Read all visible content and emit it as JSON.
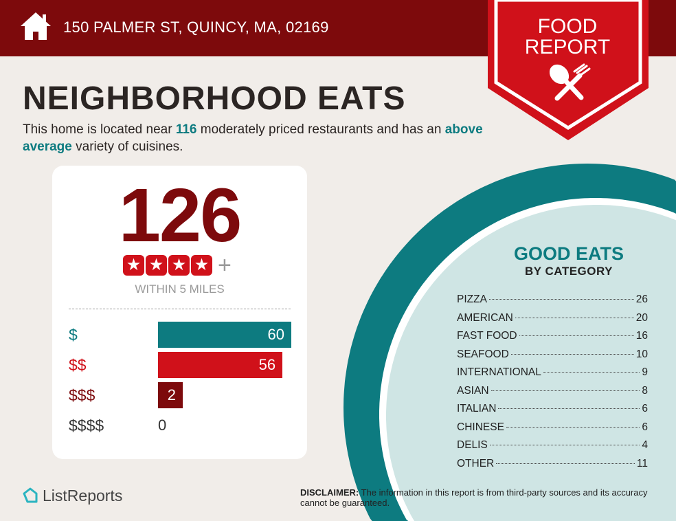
{
  "header": {
    "address": "150 PALMER ST, QUINCY, MA, 02169",
    "icon": "home-icon"
  },
  "banner": {
    "line1": "FOOD",
    "line2": "REPORT",
    "icon": "spoon-fork-icon"
  },
  "title": "NEIGHBORHOOD EATS",
  "subtitle": {
    "pre": "This home is located near ",
    "count": "116",
    "mid": " moderately priced restaurants and has an ",
    "variety": "above average",
    "post": " variety of cuisines."
  },
  "card": {
    "total": "126",
    "rating_stars": 4,
    "rating_suffix": "+",
    "within": "WITHIN 5 MILES",
    "prices": [
      {
        "label": "$",
        "value": 60,
        "color": "#0d7b80"
      },
      {
        "label": "$$",
        "value": 56,
        "color": "#d0111a"
      },
      {
        "label": "$$$",
        "value": 2,
        "color": "#7d0a0c"
      },
      {
        "label": "$$$$",
        "value": 0,
        "color": "#333333"
      }
    ]
  },
  "good_eats": {
    "title": "GOOD EATS",
    "subtitle": "BY CATEGORY",
    "categories": [
      {
        "name": "PIZZA",
        "count": "26"
      },
      {
        "name": "AMERICAN",
        "count": "20"
      },
      {
        "name": "FAST FOOD",
        "count": "16"
      },
      {
        "name": "SEAFOOD",
        "count": "10"
      },
      {
        "name": "INTERNATIONAL",
        "count": "9"
      },
      {
        "name": "ASIAN",
        "count": "8"
      },
      {
        "name": "ITALIAN",
        "count": "6"
      },
      {
        "name": "CHINESE",
        "count": "6"
      },
      {
        "name": "DELIS",
        "count": "4"
      },
      {
        "name": "OTHER",
        "count": "11"
      }
    ]
  },
  "footer": {
    "logo": "ListReports",
    "disclaimer_label": "DISCLAIMER:",
    "disclaimer": " The information in this report is from third-party sources and its accuracy cannot be guaranteed."
  },
  "colors": {
    "dark_red": "#7d0a0c",
    "red": "#d0111a",
    "teal": "#0d7b80",
    "light_teal": "#cfe5e4"
  }
}
